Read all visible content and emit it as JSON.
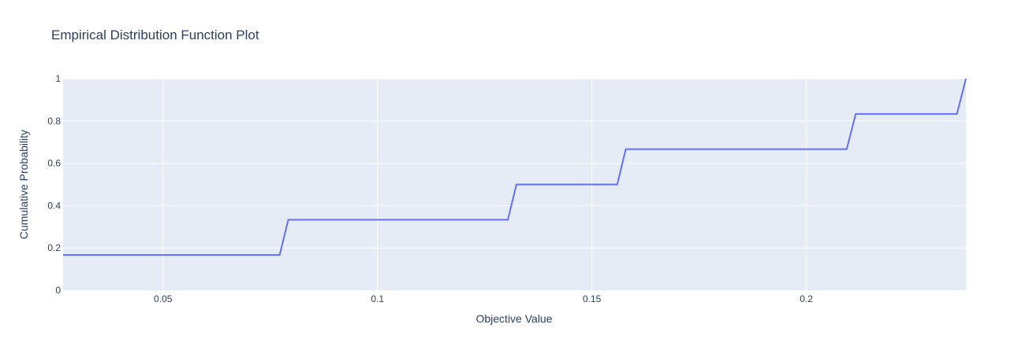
{
  "chart_data": {
    "type": "line",
    "title": "Empirical Distribution Function Plot",
    "xlabel": "Objective Value",
    "ylabel": "Cumulative Probability",
    "xlim": [
      0.0267,
      0.2372
    ],
    "ylim": [
      0,
      1
    ],
    "xticks": [
      0.05,
      0.1,
      0.15,
      0.2
    ],
    "xtick_labels": [
      "0.05",
      "0.1",
      "0.15",
      "0.2"
    ],
    "yticks": [
      0,
      0.2,
      0.4,
      0.6,
      0.8,
      1
    ],
    "ytick_labels": [
      "0",
      "0.2",
      "0.4",
      "0.6",
      "0.8",
      "1"
    ],
    "grid": true,
    "series": [
      {
        "name": "Objective Value",
        "color": "#636efa",
        "x": [
          0.0267,
          0.0772,
          0.0792,
          0.1304,
          0.1324,
          0.1559,
          0.1579,
          0.2094,
          0.2115,
          0.2351,
          0.2372
        ],
        "y": [
          0.1667,
          0.1667,
          0.3333,
          0.3333,
          0.5,
          0.5,
          0.6667,
          0.6667,
          0.8333,
          0.8333,
          1.0
        ]
      }
    ]
  },
  "colors": {
    "plot_bg": "#e5ecf6",
    "grid": "#ffffff",
    "text": "#2a3f5f"
  }
}
